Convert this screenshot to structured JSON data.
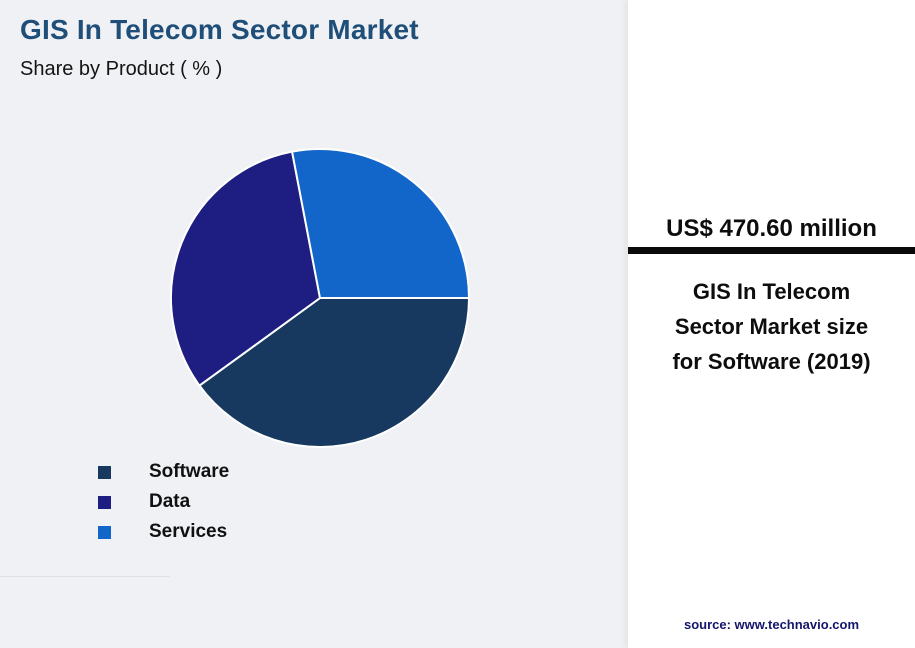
{
  "header": {
    "title": "GIS In Telecom Sector Market",
    "subtitle": "Share by Product ( % )"
  },
  "chart_data": {
    "type": "pie",
    "title": "GIS In Telecom Sector Market — Share by Product (%)",
    "categories": [
      "Software",
      "Data",
      "Services"
    ],
    "values": [
      40,
      32,
      28
    ],
    "colors": [
      "#17395f",
      "#1e1e82",
      "#1266c9"
    ],
    "start_angle_deg": 90,
    "direction": "clockwise",
    "legend_position": "bottom-left",
    "slice_border_color": "#ffffff"
  },
  "panel": {
    "headline": "US$ 470.60 million",
    "description": "GIS In Telecom Sector Market size for Software (2019)",
    "source": "source: www.technavio.com"
  },
  "colors": {
    "title": "#1f4e79",
    "background": "#eff1f4",
    "panel_background": "#ffffff",
    "panel_rule": "#0a0a0a",
    "source_text": "#15156b"
  }
}
